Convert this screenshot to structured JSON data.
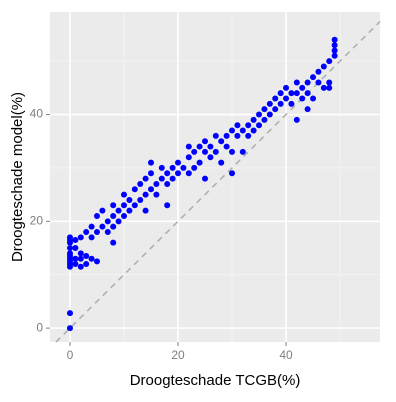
{
  "chart_data": {
    "type": "scatter",
    "xlabel": "Droogteschade TCGB(%)",
    "ylabel": "Droogteschade model(%)",
    "xlim": [
      -3.7,
      57.4
    ],
    "ylim": [
      -2.6,
      59.2
    ],
    "xticks": [
      0,
      20,
      40
    ],
    "yticks": [
      0,
      20,
      40
    ],
    "xminor": [
      10,
      30,
      50
    ],
    "yminor": [
      10,
      30,
      50
    ],
    "grid": true,
    "color": "#0000ff",
    "reference_line": true,
    "x": [
      0,
      0,
      0,
      0,
      0,
      0,
      0,
      0,
      0,
      0,
      0,
      0,
      1,
      1,
      1,
      1,
      2,
      2,
      2,
      2,
      3,
      3,
      3,
      4,
      4,
      4,
      5,
      5,
      5,
      6,
      6,
      7,
      7,
      8,
      8,
      8,
      9,
      9,
      10,
      10,
      10,
      11,
      11,
      12,
      12,
      13,
      13,
      14,
      14,
      15,
      15,
      15,
      16,
      16,
      17,
      17,
      18,
      18,
      19,
      19,
      20,
      20,
      21,
      22,
      22,
      22,
      23,
      23,
      24,
      24,
      25,
      25,
      25,
      26,
      26,
      27,
      27,
      28,
      28,
      29,
      29,
      30,
      30,
      31,
      31,
      32,
      32,
      33,
      33,
      34,
      34,
      35,
      35,
      36,
      36,
      37,
      37,
      38,
      38,
      39,
      39,
      40,
      40,
      41,
      41,
      42,
      42,
      42,
      43,
      43,
      44,
      44,
      45,
      45,
      46,
      46,
      47,
      47,
      48,
      48,
      49,
      49,
      49,
      49,
      44,
      48,
      14,
      8,
      30,
      18
    ],
    "y": [
      0,
      2.8,
      11.5,
      12,
      12.5,
      13,
      13.5,
      14,
      15,
      16,
      16.5,
      17,
      12,
      13,
      15,
      16.5,
      11.5,
      13,
      14,
      17,
      12,
      13.5,
      18,
      13,
      17,
      19,
      12.5,
      18,
      21,
      19,
      22,
      18,
      20,
      19,
      21,
      23,
      20,
      22,
      21,
      23,
      25,
      22,
      24,
      23,
      26,
      24,
      27,
      25,
      28,
      26,
      29,
      31,
      27,
      25,
      28,
      30,
      27,
      29,
      28,
      30,
      29,
      31,
      30,
      29,
      32,
      34,
      30,
      33,
      31,
      34,
      28,
      33,
      35,
      32,
      34,
      33,
      36,
      31,
      35,
      36,
      34,
      33,
      37,
      36,
      38,
      33,
      37,
      38,
      36,
      37,
      39,
      38,
      40,
      39,
      41,
      40,
      42,
      41,
      43,
      42,
      44,
      43,
      45,
      42,
      44,
      39,
      44,
      46,
      43,
      45,
      44,
      46,
      43,
      47,
      46,
      48,
      45,
      49,
      46,
      50,
      51,
      52,
      53,
      54,
      41,
      45,
      22,
      16,
      29,
      23
    ]
  }
}
